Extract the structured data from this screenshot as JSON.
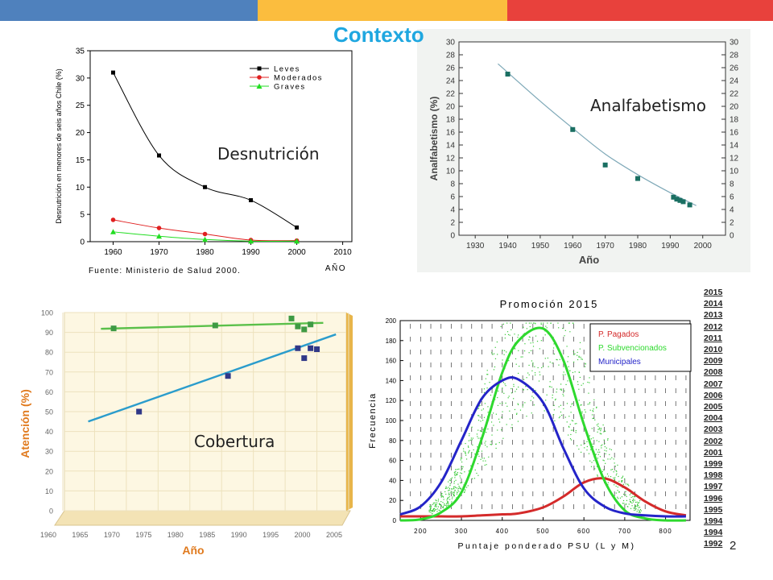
{
  "slide": {
    "title": "Contexto",
    "page_number": "2",
    "top_bar_colors": [
      "#4f81bd",
      "#fbbd3e",
      "#e8413c"
    ]
  },
  "chart_data": [
    {
      "id": "desnutricion",
      "type": "line",
      "title": "Desnutrición",
      "ylabel": "Desnutrición en menores de seis años Chile (%)",
      "xlabel": "AÑO",
      "source": "Fuente: Ministerio de Salud 2000.",
      "x_ticks": [
        1960,
        1970,
        1980,
        1990,
        2000,
        2010
      ],
      "y_ticks": [
        0,
        5,
        10,
        15,
        20,
        25,
        30,
        35
      ],
      "xlim": [
        1955,
        2012
      ],
      "ylim": [
        0,
        35
      ],
      "grid": false,
      "legend": "top-right",
      "x": [
        1960,
        1970,
        1980,
        1990,
        2000
      ],
      "series": [
        {
          "name": "Leves",
          "values": [
            31,
            15.8,
            10,
            7.6,
            2.6
          ],
          "color": "#000000"
        },
        {
          "name": "Moderados",
          "values": [
            4,
            2.5,
            1.4,
            0.3,
            0.2
          ],
          "color": "#e02020"
        },
        {
          "name": "Graves",
          "values": [
            1.8,
            1,
            0.4,
            0.1,
            0.1
          ],
          "color": "#22dd22"
        }
      ]
    },
    {
      "id": "analfabetismo",
      "type": "scatter",
      "title": "Analfabetismo",
      "ylabel": "Analfabetismo (%)",
      "xlabel": "Año",
      "x_ticks": [
        1930,
        1940,
        1950,
        1960,
        1970,
        1980,
        1990,
        2000
      ],
      "y_ticks": [
        0,
        2,
        4,
        6,
        8,
        10,
        12,
        14,
        16,
        18,
        20,
        22,
        24,
        26,
        28,
        30
      ],
      "xlim": [
        1925,
        2007
      ],
      "ylim": [
        0,
        30
      ],
      "grid": false,
      "x": [
        1940,
        1960,
        1970,
        1980,
        1991,
        1992,
        1993,
        1994,
        1996
      ],
      "values": [
        25,
        16.4,
        10.9,
        8.8,
        5.9,
        5.6,
        5.4,
        5.2,
        4.7
      ],
      "trend": {
        "x": [
          1937,
          1950,
          1960,
          1970,
          1980,
          1990,
          1998
        ],
        "y": [
          26.6,
          20.8,
          16.6,
          12.6,
          9.4,
          6.6,
          4.6
        ]
      },
      "colors": {
        "marker": "#1a6f62",
        "trend": "#7fa9b8"
      }
    },
    {
      "id": "cobertura",
      "type": "scatter",
      "title": "Cobertura",
      "ylabel": "Atención (%)",
      "xlabel": "Año",
      "x_ticks": [
        1960,
        1965,
        1970,
        1975,
        1980,
        1985,
        1990,
        1995,
        2000,
        2005
      ],
      "y_ticks": [
        0,
        10,
        20,
        30,
        40,
        50,
        60,
        70,
        80,
        90,
        100
      ],
      "xlim": [
        1960,
        2005
      ],
      "ylim": [
        0,
        100
      ],
      "grid": true,
      "series": [
        {
          "x": [
            1968,
            1984,
            1996,
            1997,
            1998,
            1999
          ],
          "values": [
            92,
            93.5,
            97,
            93,
            91.5,
            94
          ],
          "color": "#3e9a44",
          "trend": {
            "x": [
              1966,
              2001
            ],
            "y": [
              91.8,
              94.8
            ]
          }
        },
        {
          "x": [
            1972,
            1986,
            1997,
            1998,
            1999,
            2000
          ],
          "values": [
            50,
            68,
            82,
            77,
            82,
            81.5
          ],
          "color": "#303888",
          "trend": {
            "x": [
              1964,
              2003
            ],
            "y": [
              45,
              89
            ]
          }
        }
      ],
      "trend_colors": [
        "#5bc04a",
        "#2a9ccc"
      ]
    },
    {
      "id": "promocion",
      "type": "line",
      "title": "Promoción 2015",
      "ylabel": "Frecuencia",
      "xlabel": "Puntaje ponderado PSU (L y M)",
      "x_ticks": [
        200,
        300,
        400,
        500,
        600,
        700,
        800
      ],
      "y_ticks": [
        0,
        20,
        40,
        60,
        80,
        100,
        120,
        140,
        160,
        180,
        200
      ],
      "xlim": [
        150,
        860
      ],
      "ylim": [
        0,
        200
      ],
      "grid": true,
      "legend": "top-right",
      "x": [
        150,
        200,
        250,
        300,
        350,
        400,
        440,
        500,
        550,
        600,
        650,
        700,
        750,
        800,
        850
      ],
      "series": [
        {
          "name": "P. Pagados",
          "values": [
            4,
            4,
            4,
            4,
            5,
            6,
            7,
            13,
            24,
            38,
            42,
            33,
            19,
            9,
            5
          ],
          "color": "#d42a2a"
        },
        {
          "name": "P. Subvencionados",
          "values": [
            0,
            1,
            8,
            28,
            82,
            148,
            180,
            192,
            160,
            96,
            40,
            10,
            2,
            0,
            0
          ],
          "color": "#2ed92e"
        },
        {
          "name": "Municipales",
          "values": [
            6,
            14,
            38,
            80,
            122,
            140,
            141,
            118,
            72,
            32,
            14,
            7,
            5,
            4,
            4
          ],
          "color": "#2424c8"
        }
      ],
      "year_list": [
        "2015",
        "2014",
        "2013",
        "2012",
        "2011",
        "2010",
        "2009",
        "2008",
        "2007",
        "2006",
        "2005",
        "2004",
        "2003",
        "2002",
        "2001",
        "1999",
        "1998",
        "1997",
        "1996",
        "1995",
        "1994",
        "1994",
        "1992"
      ]
    }
  ]
}
